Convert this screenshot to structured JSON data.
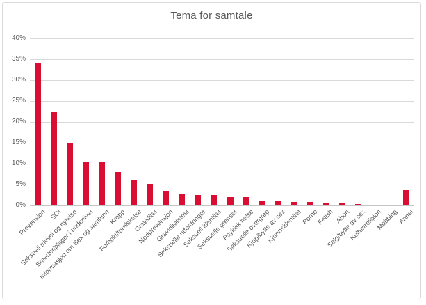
{
  "chart_data": {
    "type": "bar",
    "title": "Tema for samtale",
    "categories": [
      "Prevensjon",
      "SOI",
      "Seksuell trivsel og nytelse",
      "Smerter/plager i underlivet",
      "Informasjon om Sex og samfunn",
      "Kropp",
      "Forhold/forelskelse",
      "Graviditet",
      "Nødprevensjon",
      "Graviditetstest",
      "Seksuelle utfordringer",
      "Seksuell identitet",
      "Seksuelle grenser",
      "Psykisk helse",
      "Seksuelle overgrep",
      "Kjøp/bytte av sex",
      "Kjønnsidentitet",
      "Porno",
      "Fetish",
      "Abort",
      "Salg/bytte av sex",
      "Kultur/religion",
      "Mobbing",
      "Annet"
    ],
    "values": [
      34.0,
      22.3,
      14.7,
      10.5,
      10.3,
      8.0,
      5.9,
      5.1,
      3.4,
      2.8,
      2.4,
      2.4,
      1.9,
      1.9,
      0.9,
      0.9,
      0.7,
      0.7,
      0.6,
      0.6,
      0.3,
      0.0,
      0.0,
      3.6
    ],
    "xlabel": "",
    "ylabel": "",
    "ylim": [
      0,
      40
    ],
    "ytick_step": 5,
    "ytick_labels": [
      "0%",
      "5%",
      "10%",
      "15%",
      "20%",
      "25%",
      "30%",
      "35%",
      "40%"
    ],
    "grid": true,
    "legend": false
  },
  "colors": {
    "bar": "#DA0E33",
    "gridline": "#D9D9D9",
    "axis_line": "#C6C6C6",
    "text": "#595959",
    "border": "#D9D9D9",
    "background": "#FFFFFF"
  }
}
